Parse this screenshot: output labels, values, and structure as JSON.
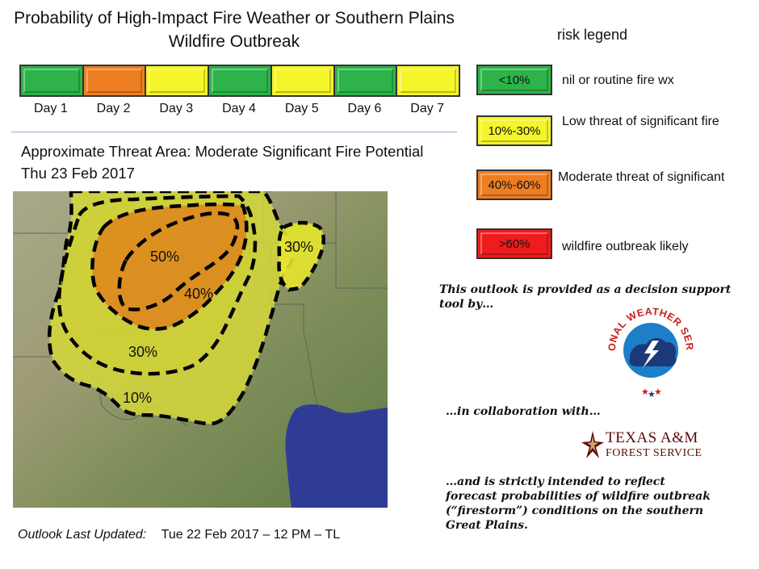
{
  "header": {
    "title": "Probability of High-Impact Fire Weather or Southern Plains Wildfire Outbreak"
  },
  "days": [
    {
      "label": "Day 1",
      "level": "green",
      "color": "#2db34a"
    },
    {
      "label": "Day 2",
      "level": "orange",
      "color": "#ee7e22"
    },
    {
      "label": "Day 3",
      "level": "yellow",
      "color": "#f5f52a"
    },
    {
      "label": "Day 4",
      "level": "green",
      "color": "#2db34a"
    },
    {
      "label": "Day 5",
      "level": "yellow",
      "color": "#f5f52a"
    },
    {
      "label": "Day 6",
      "level": "green",
      "color": "#2db34a"
    },
    {
      "label": "Day 7",
      "level": "yellow",
      "color": "#f5f52a"
    }
  ],
  "threat_area": {
    "title": "Approximate Threat Area:  Moderate Significant Fire Potential Thu 23 Feb 2017"
  },
  "map": {
    "contour_labels": [
      "50%",
      "40%",
      "30%",
      "10%",
      "30%"
    ],
    "colors": {
      "outer": "#d4d83a",
      "inner": "#dc8a1e",
      "water": "#2f3c96"
    }
  },
  "updated": {
    "label": "Outlook Last Updated:",
    "value": "Tue 22 Feb 2017 – 12 PM – TL"
  },
  "legend": {
    "heading": "risk legend",
    "items": [
      {
        "swatch": "<10%",
        "color": "#2db34a",
        "desc": "nil or routine fire wx"
      },
      {
        "swatch": "10%-30%",
        "color": "#f5f52a",
        "desc": "Low threat of significant fire"
      },
      {
        "swatch": "40%-60%",
        "color": "#ee7e22",
        "desc": "Moderate threat of significant"
      },
      {
        "swatch": ">60%",
        "color": "#ee1c1c",
        "desc": "wildfire outbreak likely"
      }
    ]
  },
  "info": {
    "provided_by": "This outlook is provided as a decision support tool by…",
    "collab": "…in collaboration with…",
    "intent": "…and is strictly intended to reflect forecast probabilities of wildfire outbreak (“firestorm”) conditions on the southern Great Plains."
  },
  "logos": {
    "nws": "NATIONAL WEATHER SERVICE",
    "nws_icon": "nws-logo-icon",
    "tamu_name": "TEXAS A&M",
    "tamu_sub": "FOREST SERVICE",
    "tamu_icon": "star-icon"
  }
}
